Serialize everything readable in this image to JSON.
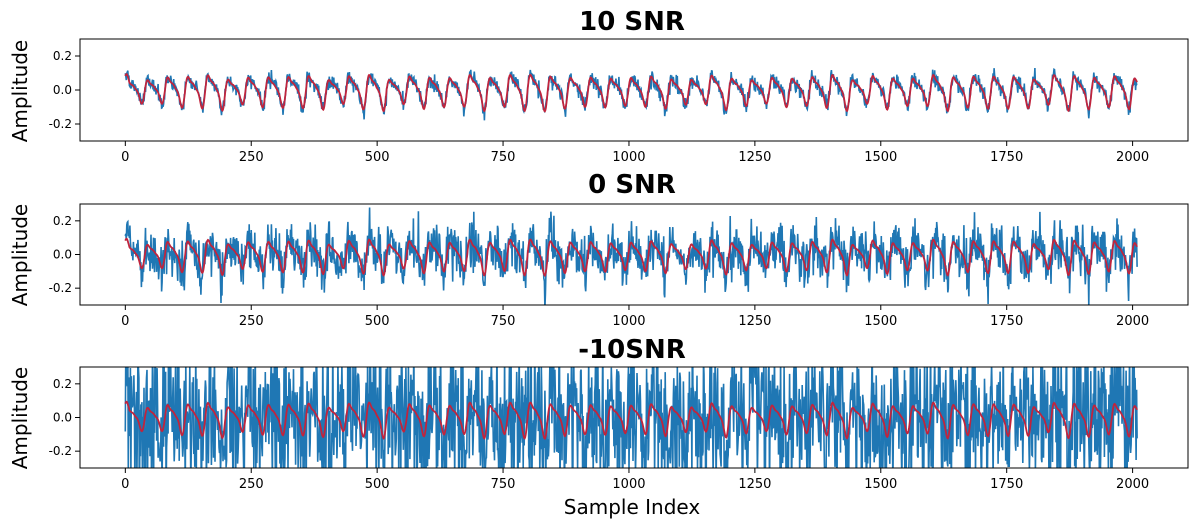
{
  "chart_data": [
    {
      "type": "line",
      "title": "10 SNR",
      "xlabel": "",
      "ylabel": "Amplitude",
      "xlim": [
        -90,
        2110
      ],
      "ylim": [
        -0.3,
        0.3
      ],
      "xticks": [
        0,
        250,
        500,
        750,
        1000,
        1250,
        1500,
        1750,
        2000
      ],
      "yticks": [
        -0.2,
        0.0,
        0.2
      ],
      "ytick_labels": [
        "-0.2",
        "0.0",
        "0.2"
      ],
      "x_range": [
        0,
        2010
      ],
      "cycle_period": 40,
      "clean_amplitude": 0.09,
      "noise_amplitude": 0.028,
      "series": [
        {
          "role": "noisy",
          "color": "#1f77b4"
        },
        {
          "role": "clean",
          "color": "#c0243d"
        }
      ]
    },
    {
      "type": "line",
      "title": "0 SNR",
      "xlabel": "",
      "ylabel": "Amplitude",
      "xlim": [
        -90,
        2110
      ],
      "ylim": [
        -0.3,
        0.3
      ],
      "xticks": [
        0,
        250,
        500,
        750,
        1000,
        1250,
        1500,
        1750,
        2000
      ],
      "yticks": [
        -0.2,
        0.0,
        0.2
      ],
      "ytick_labels": [
        "-0.2",
        "0.0",
        "0.2"
      ],
      "x_range": [
        0,
        2010
      ],
      "cycle_period": 40,
      "clean_amplitude": 0.09,
      "noise_amplitude": 0.09,
      "series": [
        {
          "role": "noisy",
          "color": "#1f77b4"
        },
        {
          "role": "clean",
          "color": "#c0243d"
        }
      ]
    },
    {
      "type": "line",
      "title": "-10SNR",
      "xlabel": "Sample Index",
      "ylabel": "Amplitude",
      "xlim": [
        -90,
        2110
      ],
      "ylim": [
        -0.3,
        0.3
      ],
      "xticks": [
        0,
        250,
        500,
        750,
        1000,
        1250,
        1500,
        1750,
        2000
      ],
      "yticks": [
        -0.2,
        0.0,
        0.2
      ],
      "ytick_labels": [
        "-0.2",
        "0.0",
        "0.2"
      ],
      "x_range": [
        0,
        2010
      ],
      "cycle_period": 40,
      "clean_amplitude": 0.09,
      "noise_amplitude": 0.29,
      "series": [
        {
          "role": "noisy",
          "color": "#1f77b4"
        },
        {
          "role": "clean",
          "color": "#c0243d"
        }
      ]
    }
  ]
}
